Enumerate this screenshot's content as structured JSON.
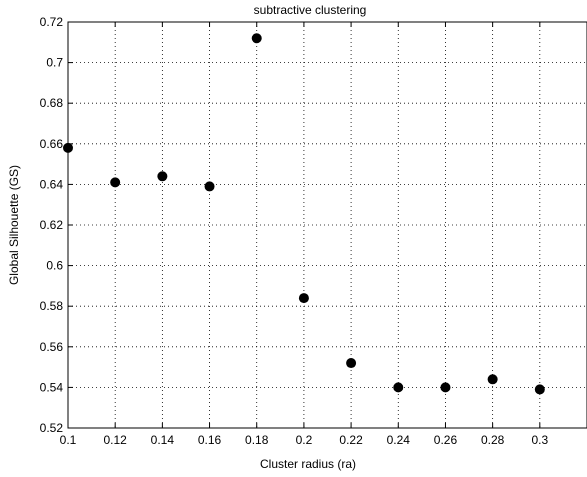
{
  "chart_data": {
    "type": "scatter",
    "title": "subtractive clustering",
    "xlabel": "Cluster radius (ra)",
    "ylabel": "Global Silhouette (GS)",
    "xlim": [
      0.1,
      0.32
    ],
    "ylim": [
      0.52,
      0.72
    ],
    "xticks": [
      "0.1",
      "0.12",
      "0.14",
      "0.16",
      "0.18",
      "0.2",
      "0.22",
      "0.24",
      "0.26",
      "0.28",
      "0.3"
    ],
    "yticks": [
      "0.52",
      "0.54",
      "0.56",
      "0.58",
      "0.6",
      "0.62",
      "0.64",
      "0.66",
      "0.68",
      "0.7",
      "0.72"
    ],
    "grid": true,
    "marker_color": "#000000",
    "points": [
      {
        "x": 0.1,
        "y": 0.658
      },
      {
        "x": 0.12,
        "y": 0.641
      },
      {
        "x": 0.14,
        "y": 0.644
      },
      {
        "x": 0.16,
        "y": 0.639
      },
      {
        "x": 0.18,
        "y": 0.712
      },
      {
        "x": 0.2,
        "y": 0.584
      },
      {
        "x": 0.22,
        "y": 0.552
      },
      {
        "x": 0.24,
        "y": 0.54
      },
      {
        "x": 0.26,
        "y": 0.54
      },
      {
        "x": 0.28,
        "y": 0.544
      },
      {
        "x": 0.3,
        "y": 0.539
      }
    ]
  }
}
